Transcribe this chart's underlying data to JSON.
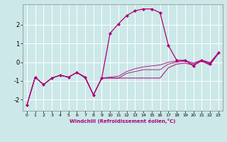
{
  "xlabel": "Windchill (Refroidissement éolien,°C)",
  "bg_color": "#cce8e8",
  "grid_color": "#ffffff",
  "line_color": "#aa0077",
  "xlim": [
    -0.5,
    23.5
  ],
  "ylim": [
    -2.6,
    3.1
  ],
  "yticks": [
    -2,
    -1,
    0,
    1,
    2
  ],
  "xticks": [
    0,
    1,
    2,
    3,
    4,
    5,
    6,
    7,
    8,
    9,
    10,
    11,
    12,
    13,
    14,
    15,
    16,
    17,
    18,
    19,
    20,
    21,
    22,
    23
  ],
  "hours": [
    0,
    1,
    2,
    3,
    4,
    5,
    6,
    7,
    8,
    9,
    10,
    11,
    12,
    13,
    14,
    15,
    16,
    17,
    18,
    19,
    20,
    21,
    22,
    23
  ],
  "line1": [
    -2.3,
    -0.8,
    -1.2,
    -0.85,
    -0.7,
    -0.8,
    -0.55,
    -0.8,
    -1.75,
    -0.85,
    1.55,
    2.05,
    2.5,
    2.75,
    2.85,
    2.85,
    2.65,
    0.9,
    0.1,
    0.1,
    -0.2,
    0.1,
    -0.1,
    0.5
  ],
  "line2": [
    -2.3,
    -0.8,
    -1.2,
    -0.85,
    -0.7,
    -0.8,
    -0.55,
    -0.85,
    -1.75,
    -0.85,
    -0.85,
    -0.85,
    -0.85,
    -0.85,
    -0.85,
    -0.85,
    -0.85,
    -0.3,
    -0.1,
    -0.05,
    -0.15,
    0.05,
    -0.15,
    0.45
  ],
  "line3": [
    -2.3,
    -0.8,
    -1.2,
    -0.85,
    -0.7,
    -0.8,
    -0.55,
    -0.8,
    -1.75,
    -0.85,
    -0.85,
    -0.85,
    -0.6,
    -0.5,
    -0.4,
    -0.4,
    -0.4,
    -0.1,
    0.0,
    0.05,
    -0.1,
    0.1,
    -0.05,
    0.48
  ],
  "line4": [
    -2.3,
    -0.8,
    -1.2,
    -0.85,
    -0.7,
    -0.8,
    -0.55,
    -0.8,
    -1.75,
    -0.85,
    -0.8,
    -0.75,
    -0.5,
    -0.35,
    -0.25,
    -0.2,
    -0.15,
    0.0,
    0.05,
    0.1,
    -0.05,
    0.12,
    -0.02,
    0.5
  ]
}
